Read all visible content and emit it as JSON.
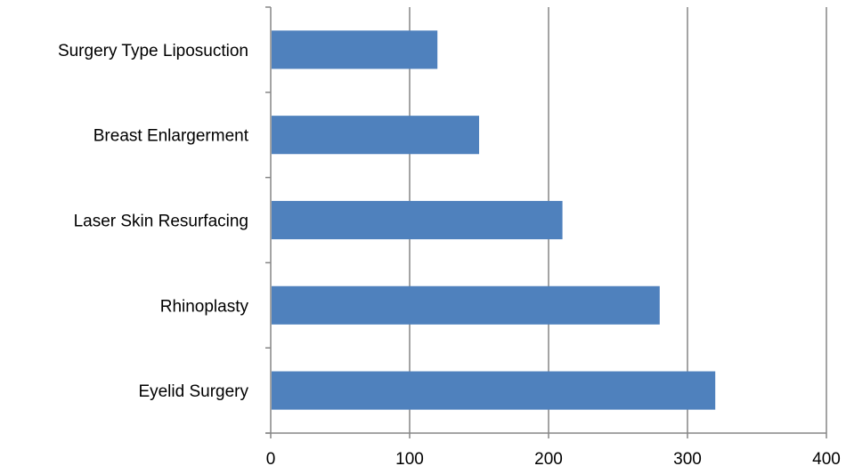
{
  "chart_data": {
    "type": "bar",
    "orientation": "horizontal",
    "title": "",
    "xlabel": "",
    "ylabel": "",
    "categories": [
      "Surgery Type Liposuction",
      "Breast Enlargerment",
      "Laser Skin Resurfacing",
      "Rhinoplasty",
      "Eyelid Surgery"
    ],
    "values": [
      120,
      150,
      210,
      280,
      320
    ],
    "xlim": [
      0,
      400
    ],
    "x_ticks": [
      0,
      100,
      200,
      300,
      400
    ],
    "x_tick_labels": [
      "0",
      "100",
      "200",
      "300",
      "400"
    ],
    "grid": "vertical major gridlines on",
    "legend": "none",
    "colors": {
      "bar": "#4f81bd",
      "grid": "#868686",
      "axis": "#868686",
      "text": "#000000"
    }
  }
}
